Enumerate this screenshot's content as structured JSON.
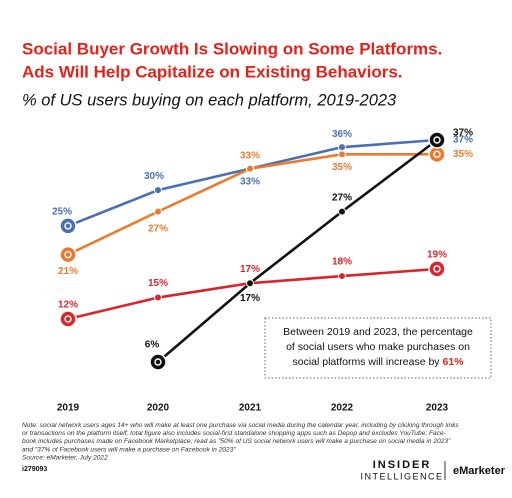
{
  "chart_data": {
    "type": "line",
    "title": [
      "Social Buyer Growth Is Slowing on Some Platforms.",
      "Ads Will Help Capitalize on Existing Behaviors."
    ],
    "subtitle": "% of US users buying on each platform, 2019-2023",
    "categories": [
      "2019",
      "2020",
      "2021",
      "2022",
      "2023"
    ],
    "series": [
      {
        "color": "#4a6fb5",
        "values": [
          25,
          30,
          33,
          36,
          37
        ],
        "value_labels": [
          "25%",
          "30%",
          "33%",
          "36%",
          "37%"
        ]
      },
      {
        "color": "#ec7a2e",
        "values": [
          21,
          27,
          33,
          35,
          35
        ],
        "value_labels": [
          "21%",
          "27%",
          "33%",
          "35%",
          "35%"
        ]
      },
      {
        "color": "#d9262d",
        "values": [
          12,
          15,
          17,
          18,
          19
        ],
        "value_labels": [
          "12%",
          "15%",
          "17%",
          "18%",
          "19%"
        ]
      },
      {
        "color": "#111111",
        "values": [
          null,
          6,
          17,
          27,
          37
        ],
        "value_labels": [
          null,
          "6%",
          "17%",
          "27%",
          "37%"
        ]
      }
    ],
    "annotation": {
      "lines": [
        "Between 2019 and 2023, the percentage",
        "of social users who make purchases on",
        "social platforms will increase by"
      ],
      "highlight": "61%"
    },
    "note": [
      "Note: social network users ages 14+ who will make at least one purchase via social media during the calendar year, including by clicking through links",
      "or transactions on the platform itself; total figure also includes social-first standalone shopping apps such as Depop and excludes YouTube; Face-",
      "book includes purchases made on Facebook Marketplace; read as \"50% of US social network users will make a purchase on social media in 2023\"",
      "and \"37% of Facebook users will make a purchase on Facebook in 2023\"",
      "Source: eMarketer, July 2022"
    ],
    "chart_id": "i279093",
    "brand": [
      "INSIDER",
      "INTELLIGENCE",
      "eMarketer"
    ]
  }
}
